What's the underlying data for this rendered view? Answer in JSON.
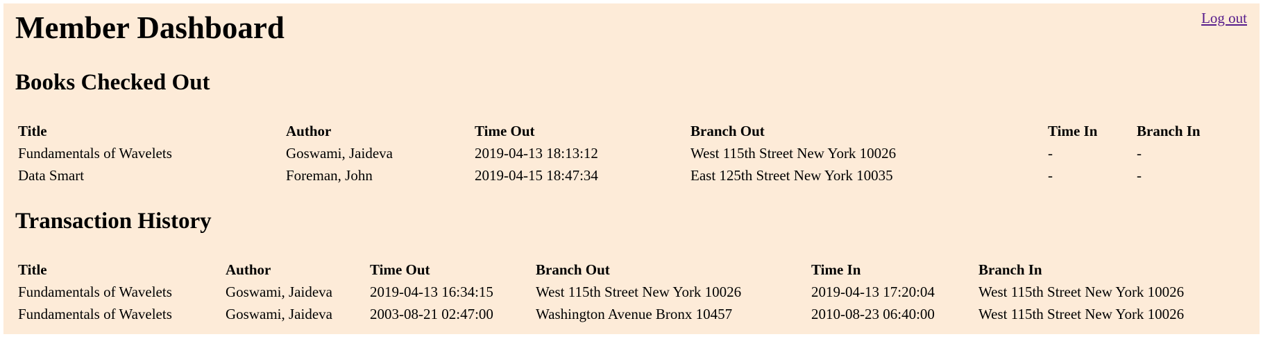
{
  "header": {
    "title": "Member Dashboard",
    "logout_label": "Log out"
  },
  "books_checked_out": {
    "heading": "Books Checked Out",
    "columns": [
      "Title",
      "Author",
      "Time Out",
      "Branch Out",
      "Time In",
      "Branch In"
    ],
    "rows": [
      [
        "Fundamentals of Wavelets",
        "Goswami, Jaideva",
        "2019-04-13 18:13:12",
        "West 115th Street New York 10026",
        "-",
        "-"
      ],
      [
        "Data Smart",
        "Foreman, John",
        "2019-04-15 18:47:34",
        "East 125th Street New York 10035",
        "-",
        "-"
      ]
    ]
  },
  "transaction_history": {
    "heading": "Transaction History",
    "columns": [
      "Title",
      "Author",
      "Time Out",
      "Branch Out",
      "Time In",
      "Branch In"
    ],
    "rows": [
      [
        "Fundamentals of Wavelets",
        "Goswami, Jaideva",
        "2019-04-13 16:34:15",
        "West 115th Street New York 10026",
        "2019-04-13 17:20:04",
        "West 115th Street New York 10026"
      ],
      [
        "Fundamentals of Wavelets",
        "Goswami, Jaideva",
        "2003-08-21 02:47:00",
        "Washington Avenue Bronx 10457",
        "2010-08-23 06:40:00",
        "West 115th Street New York 10026"
      ]
    ]
  },
  "colors": {
    "page_background": "#fdebd8",
    "link": "#551a8b"
  }
}
